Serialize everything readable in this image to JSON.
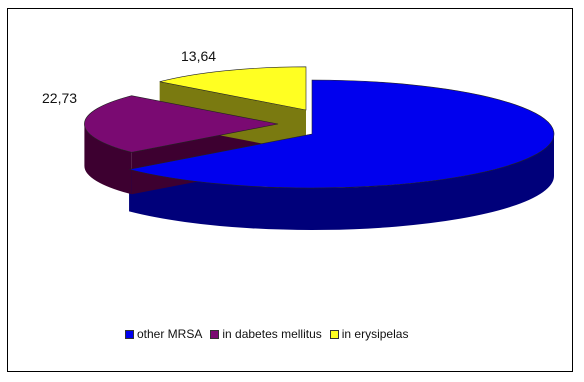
{
  "chart_data": {
    "type": "pie",
    "style": "3d-exploded",
    "categories": [
      "other MRSA",
      "in dabetes mellitus",
      "in erysipelas"
    ],
    "values": [
      63.63,
      22.73,
      13.64
    ],
    "data_labels": [
      "",
      "22,73",
      "13,64"
    ],
    "colors": [
      "#0000ee",
      "#7a0a72",
      "#ffff22"
    ],
    "side_colors": [
      "#00007a",
      "#3d0030",
      "#7a7a10"
    ],
    "legend_position": "bottom"
  }
}
